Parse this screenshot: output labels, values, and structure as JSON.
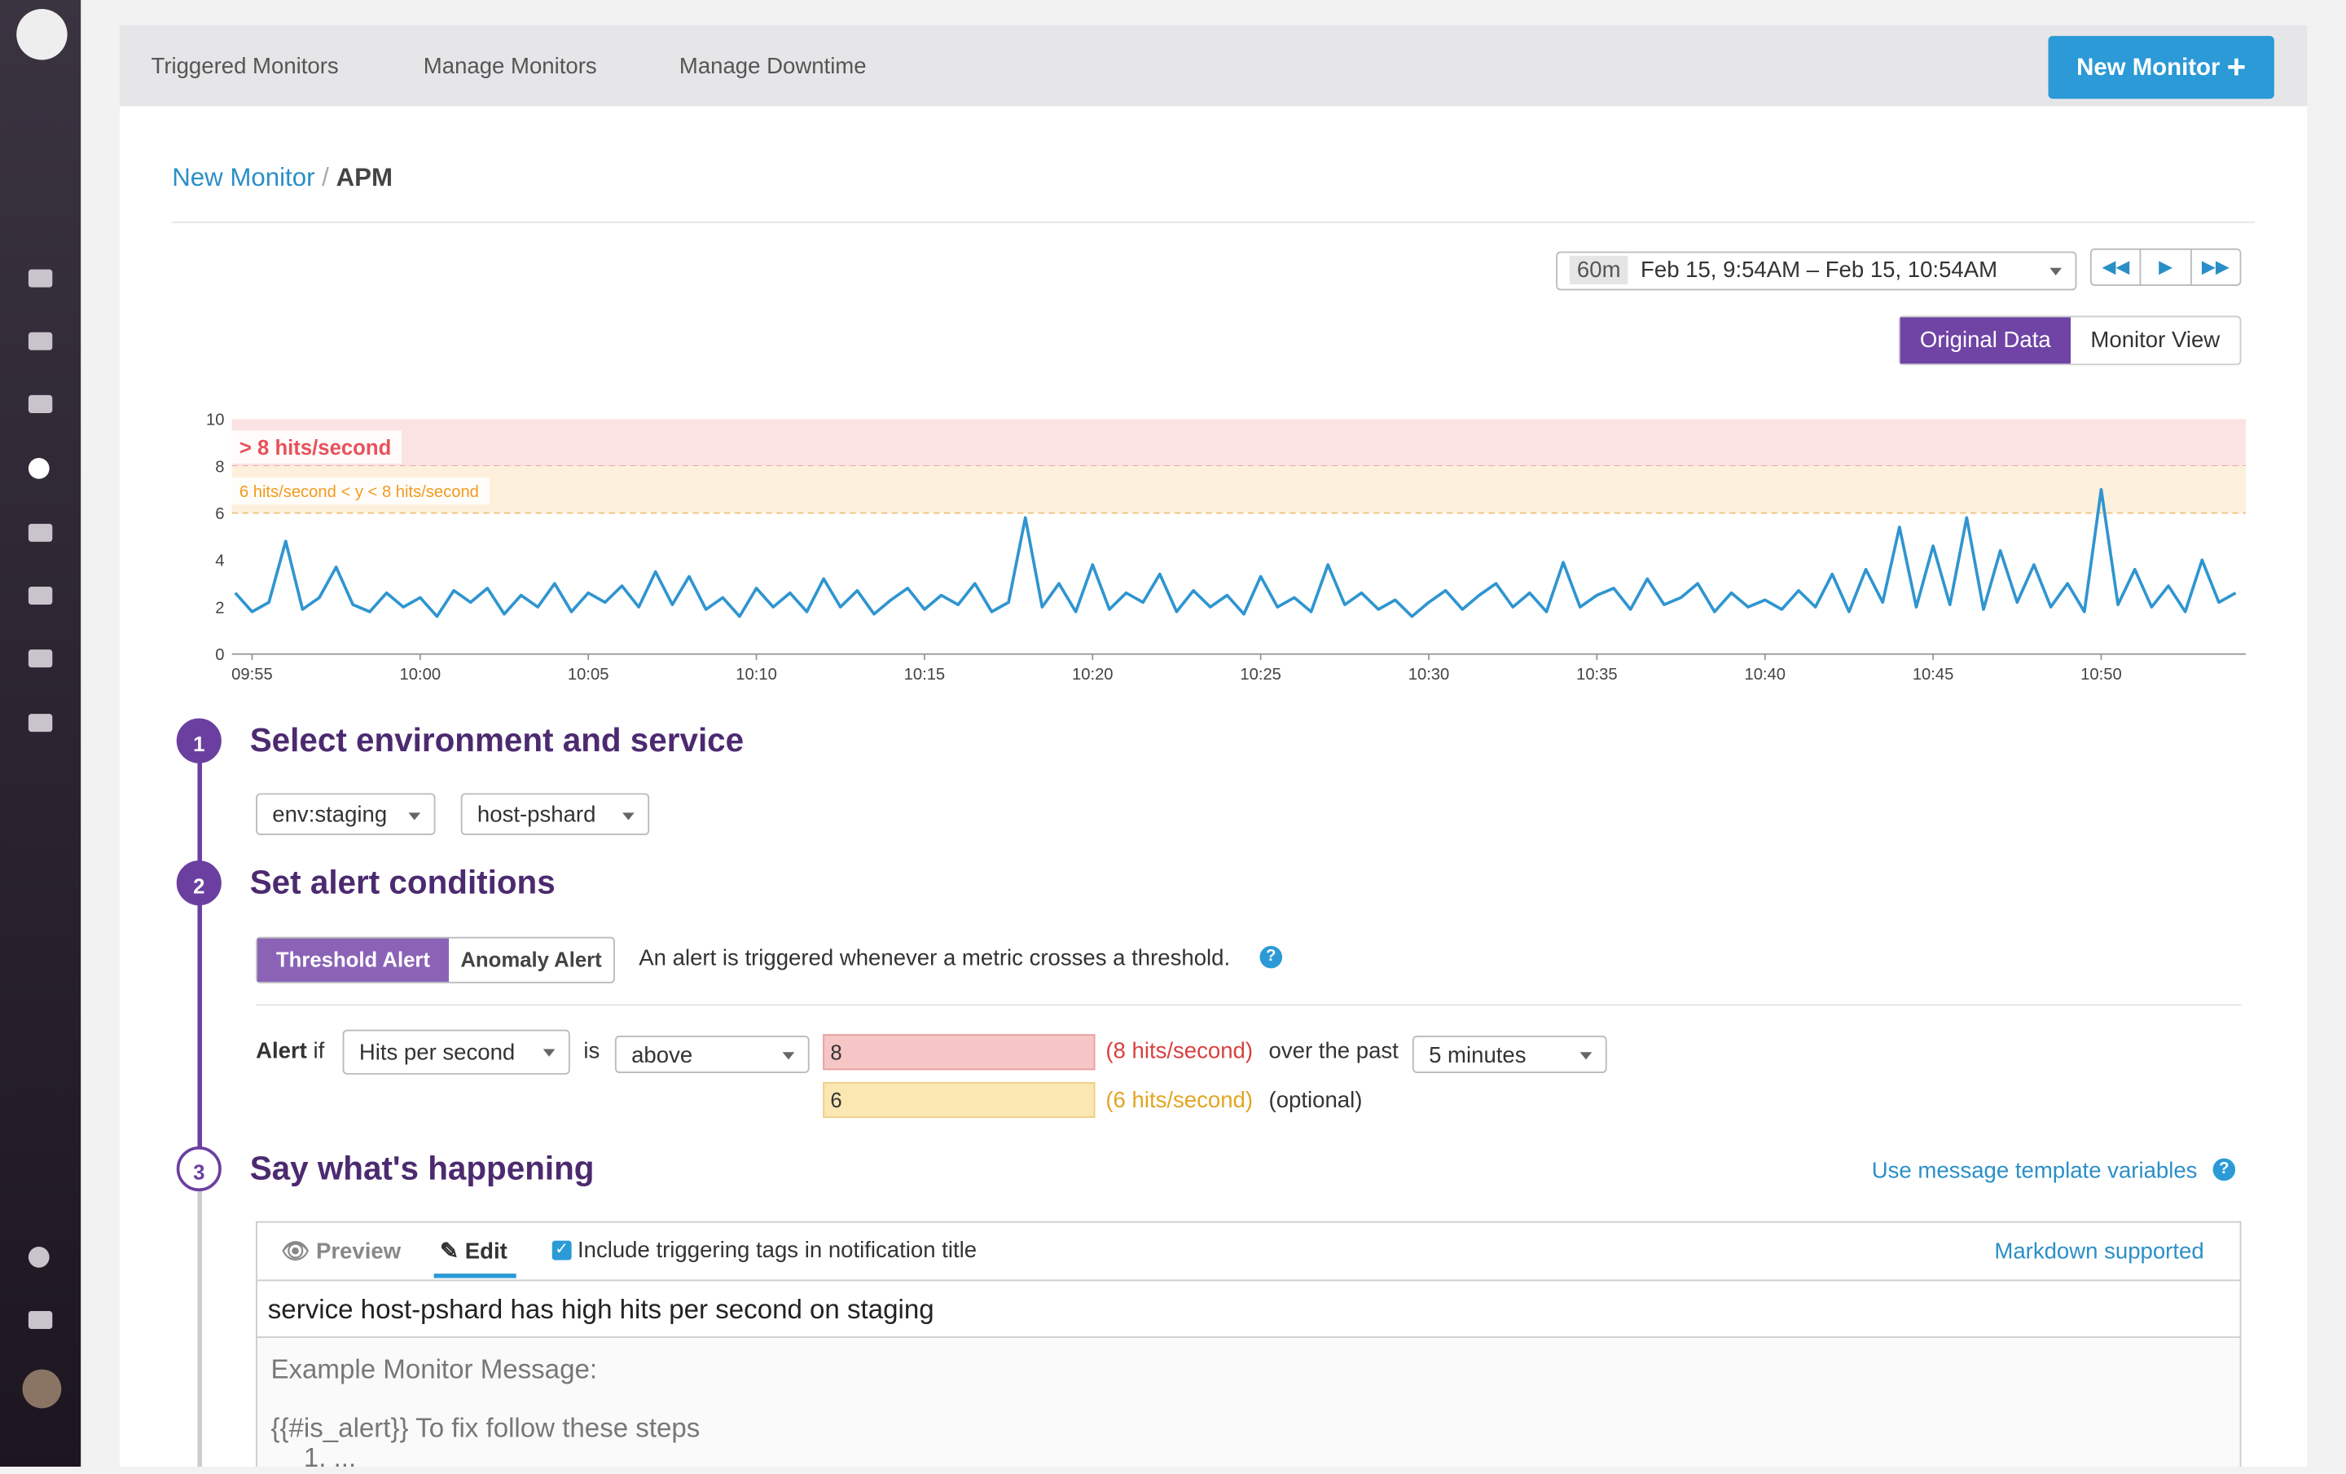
{
  "nav": {
    "tabs": [
      "Triggered Monitors",
      "Manage Monitors",
      "Manage Downtime"
    ],
    "new_button": "New Monitor"
  },
  "breadcrumb": {
    "parent": "New Monitor",
    "current": "APM"
  },
  "time_range": {
    "span": "60m",
    "label": "Feb 15, 9:54AM – Feb 15, 10:54AM"
  },
  "view_toggle": [
    "Original Data",
    "Monitor View"
  ],
  "chart_data": {
    "type": "line",
    "xlim": [
      594.4,
      654.3
    ],
    "xticks": [
      {
        "value": 595,
        "label": "09:55"
      },
      {
        "value": 600,
        "label": "10:00"
      },
      {
        "value": 605,
        "label": "10:05"
      },
      {
        "value": 610,
        "label": "10:10"
      },
      {
        "value": 615,
        "label": "10:15"
      },
      {
        "value": 620,
        "label": "10:20"
      },
      {
        "value": 625,
        "label": "10:25"
      },
      {
        "value": 630,
        "label": "10:30"
      },
      {
        "value": 635,
        "label": "10:35"
      },
      {
        "value": 640,
        "label": "10:40"
      },
      {
        "value": 645,
        "label": "10:45"
      },
      {
        "value": 650,
        "label": "10:50"
      }
    ],
    "ylim": [
      0,
      10
    ],
    "yticks": [
      0,
      2,
      4,
      6,
      8,
      10
    ],
    "thresholds": [
      {
        "value": 8,
        "label": "> 8 hits/second",
        "color": "#fce3e3",
        "line": "#e7a6a6",
        "text": "#e8515a"
      },
      {
        "value": 6,
        "label": "6 hits/second < y < 8 hits/second",
        "color": "#fdf0dc",
        "line": "#efbf7a",
        "text": "#f29a1e"
      }
    ],
    "series": [
      {
        "color": "#2f95d0",
        "x": [
          594.5,
          595,
          595.5,
          596,
          596.5,
          597,
          597.5,
          598,
          598.5,
          599,
          599.5,
          600,
          600.5,
          601,
          601.5,
          602,
          602.5,
          603,
          603.5,
          604,
          604.5,
          605,
          605.5,
          606,
          606.5,
          607,
          607.5,
          608,
          608.5,
          609,
          609.5,
          610,
          610.5,
          611,
          611.5,
          612,
          612.5,
          613,
          613.5,
          614,
          614.5,
          615,
          615.5,
          616,
          616.5,
          617,
          617.5,
          618,
          618.5,
          619,
          619.5,
          620,
          620.5,
          621,
          621.5,
          622,
          622.5,
          623,
          623.5,
          624,
          624.5,
          625,
          625.5,
          626,
          626.5,
          627,
          627.5,
          628,
          628.5,
          629,
          629.5,
          630,
          630.5,
          631,
          631.5,
          632,
          632.5,
          633,
          633.5,
          634,
          634.5,
          635,
          635.5,
          636,
          636.5,
          637,
          637.5,
          638,
          638.5,
          639,
          639.5,
          640,
          640.5,
          641,
          641.5,
          642,
          642.5,
          643,
          643.5,
          644,
          644.5,
          645,
          645.5,
          646,
          646.5,
          647,
          647.5,
          648,
          648.5,
          649,
          649.5,
          650,
          650.5,
          651,
          651.5,
          652,
          652.5,
          653,
          653.5,
          654
        ],
        "values": [
          2.6,
          1.8,
          2.2,
          4.8,
          1.9,
          2.4,
          3.7,
          2.1,
          1.8,
          2.6,
          2.0,
          2.4,
          1.6,
          2.7,
          2.2,
          2.8,
          1.7,
          2.5,
          2.0,
          3.0,
          1.8,
          2.6,
          2.2,
          2.9,
          2.0,
          3.5,
          2.1,
          3.3,
          1.9,
          2.4,
          1.6,
          2.8,
          2.0,
          2.6,
          1.8,
          3.2,
          2.0,
          2.7,
          1.7,
          2.3,
          2.8,
          1.9,
          2.5,
          2.1,
          3.0,
          1.8,
          2.2,
          5.8,
          2.0,
          3.0,
          1.8,
          3.8,
          1.9,
          2.6,
          2.2,
          3.4,
          1.8,
          2.7,
          2.0,
          2.5,
          1.7,
          3.3,
          2.0,
          2.4,
          1.8,
          3.8,
          2.1,
          2.6,
          1.9,
          2.3,
          1.6,
          2.2,
          2.7,
          1.9,
          2.5,
          3.0,
          2.0,
          2.6,
          1.8,
          3.9,
          2.0,
          2.5,
          2.8,
          1.9,
          3.2,
          2.1,
          2.4,
          3.0,
          1.8,
          2.6,
          2.0,
          2.3,
          1.9,
          2.7,
          2.0,
          3.4,
          1.8,
          3.6,
          2.2,
          5.4,
          2.0,
          4.6,
          2.1,
          5.8,
          1.9,
          4.4,
          2.2,
          3.8,
          2.0,
          3.0,
          1.8,
          7.0,
          2.1,
          3.6,
          2.0,
          2.9,
          1.8,
          4.0,
          2.2,
          2.6
        ]
      }
    ]
  },
  "steps": [
    {
      "number": 1,
      "title": "Select environment and service"
    },
    {
      "number": 2,
      "title": "Set alert conditions"
    },
    {
      "number": 3,
      "title": "Say what's happening"
    }
  ],
  "env": [
    "env:staging",
    "host-pshard"
  ],
  "alert": {
    "types": [
      "Threshold Alert",
      "Anomaly Alert"
    ],
    "description": "An alert is triggered whenever a metric crosses a threshold.",
    "alert_word": "Alert",
    "if_word": "if",
    "metric": "Hits per second",
    "is_word": "is",
    "comparator": "above",
    "critical": 8,
    "critical_note": "(8 hits/second)",
    "over_the_past": "over the past",
    "window": "5 minutes",
    "warning": 6,
    "warning_note": "(6 hits/second)",
    "optional": "(optional)"
  },
  "message": {
    "template_link": "Use message template variables",
    "tabs": [
      "Preview",
      "Edit"
    ],
    "include_tags": "Include triggering tags in notification title",
    "markdown": "Markdown supported",
    "title": "service host-pshard has high hits per second on staging",
    "body": [
      "Example Monitor Message:",
      "{{#is_alert}} To fix follow these steps",
      "1. ..."
    ]
  }
}
